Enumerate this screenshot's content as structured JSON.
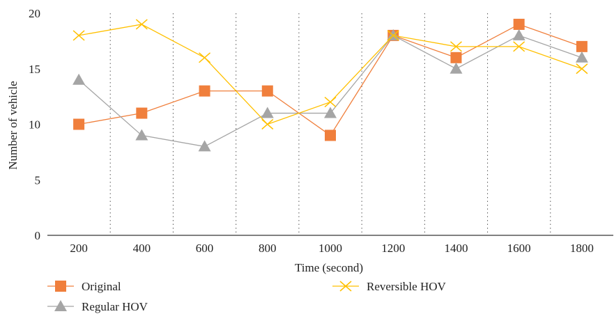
{
  "chart_data": {
    "type": "line",
    "xlabel": "Time (second)",
    "ylabel": "Number of vehicle",
    "categories": [
      "200",
      "400",
      "600",
      "800",
      "1000",
      "1200",
      "1400",
      "1600",
      "1800"
    ],
    "ylim": [
      0,
      20
    ],
    "yticks": [
      "0",
      "5",
      "10",
      "15",
      "20"
    ],
    "grid": "vertical dotted between categories",
    "legend_position": "bottom",
    "series": [
      {
        "name": "Original",
        "values": [
          10,
          11,
          13,
          13,
          9,
          18,
          16,
          19,
          17
        ],
        "color": "#f07f3c",
        "marker": "square"
      },
      {
        "name": "Regular HOV",
        "values": [
          14,
          9,
          8,
          11,
          11,
          18,
          15,
          18,
          16
        ],
        "color": "#a5a5a5",
        "marker": "triangle"
      },
      {
        "name": "Reversible HOV",
        "values": [
          18,
          19,
          16,
          10,
          12,
          18,
          17,
          17,
          15
        ],
        "color": "#ffc000",
        "marker": "x"
      }
    ]
  }
}
